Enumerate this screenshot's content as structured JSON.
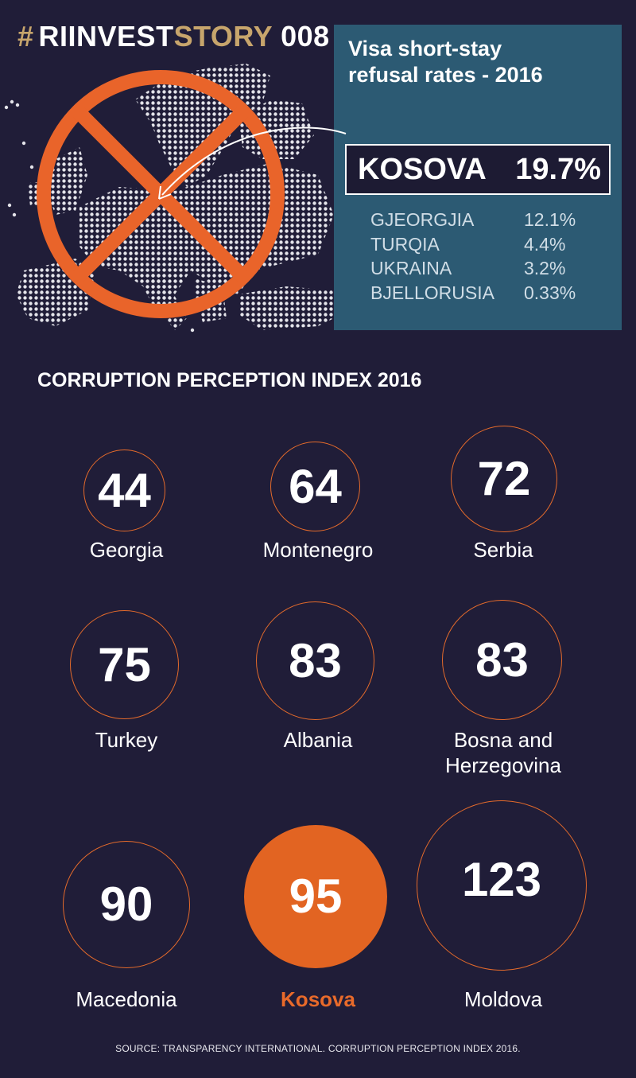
{
  "header": {
    "hash": "#",
    "word1": "RIINVEST",
    "word2": "STORY",
    "number": "008"
  },
  "visa": {
    "title_line1": "Visa short-stay",
    "title_line2": "refusal rates - 2016",
    "highlight": {
      "country": "KOSOVA",
      "rate": "19.7%"
    },
    "rows": [
      {
        "country": "GJEORGJIA",
        "rate": "12.1%"
      },
      {
        "country": "TURQIA",
        "rate": "4.4%"
      },
      {
        "country": "UKRAINA",
        "rate": "3.2%"
      },
      {
        "country": "BJELLORUSIA",
        "rate": "0.33%"
      }
    ]
  },
  "cpi": {
    "title": "CORRUPTION PERCEPTION INDEX 2016",
    "items": [
      {
        "country": "Georgia",
        "score": "44"
      },
      {
        "country": "Montenegro",
        "score": "64"
      },
      {
        "country": "Serbia",
        "score": "72"
      },
      {
        "country": "Turkey",
        "score": "75"
      },
      {
        "country": "Albania",
        "score": "83"
      },
      {
        "country": "Bosna and",
        "country2": "Herzegovina",
        "score": "83"
      },
      {
        "country": "Macedonia",
        "score": "90"
      },
      {
        "country": "Kosova",
        "score": "95"
      },
      {
        "country": "Moldova",
        "score": "123"
      }
    ]
  },
  "source": "SOURCE: TRANSPARENCY INTERNATIONAL. CORRUPTION PERCEPTION INDEX 2016.",
  "colors": {
    "background": "#201d38",
    "accent": "#e26422",
    "gold": "#c7a56c",
    "panel": "#2c5a73"
  },
  "icons": {
    "map": "dotted-europe-map-icon",
    "ban": "prohibition-sign-icon",
    "arrow": "curved-arrow-icon"
  }
}
